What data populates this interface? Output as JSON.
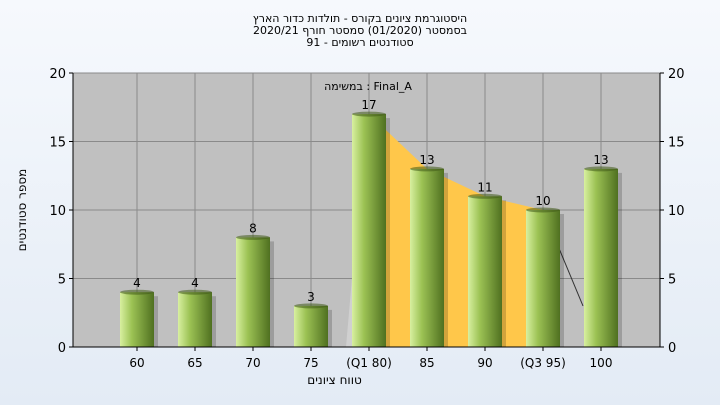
{
  "title_lines": [
    "היסטוגרמת ציונים בקורס - תולדות כדור הארץ",
    "בסמסטר  (01/2020)  סמסטר חורף  2020/21",
    "סטודנטים רשומים - 91"
  ],
  "chart_data": {
    "type": "bar",
    "annotation": "במשימה : Final_A",
    "categories": [
      "60",
      "65",
      "70",
      "75",
      "(Q1 80)",
      "85",
      "90",
      "(Q3 95)",
      "100"
    ],
    "values": [
      4,
      4,
      8,
      3,
      17,
      13,
      11,
      10,
      13
    ],
    "xlabel": "טווח ציונים",
    "ylabel": "מספר סטודנטים",
    "ylim": [
      0,
      20
    ],
    "yticks": [
      0,
      5,
      10,
      15,
      20
    ],
    "grid": true,
    "colors": {
      "plot_bg": "#c0c0c0",
      "bar_light": "#d8f0a0",
      "bar_mid": "#9cc254",
      "bar_dark": "#4f7020",
      "iqr_fill": "#ffc74a",
      "outer_fill": "#d2d2d2"
    }
  }
}
